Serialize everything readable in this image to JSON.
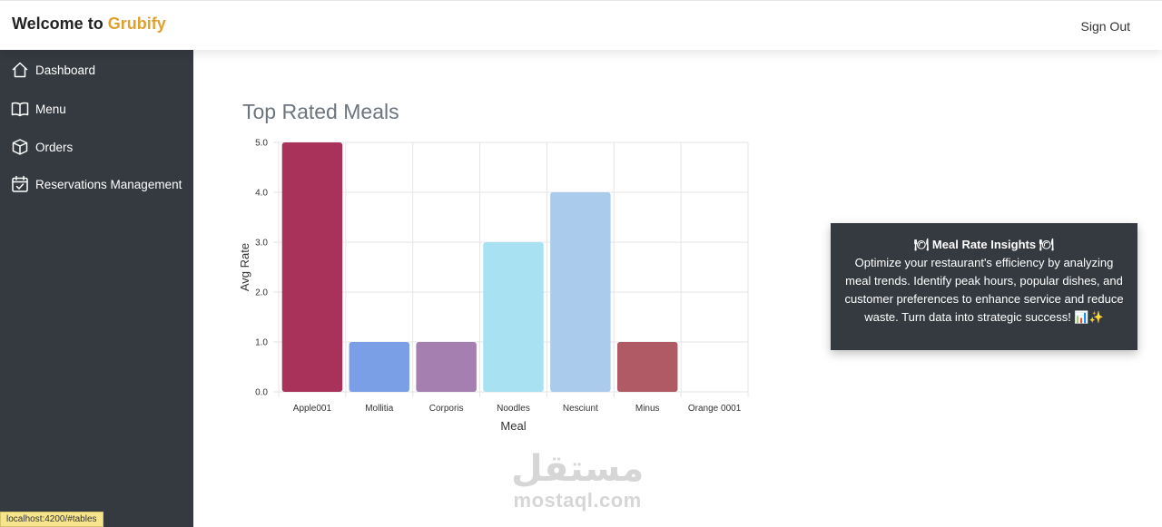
{
  "header": {
    "brand_prefix": "Welcome to",
    "brand_name": "Grubify",
    "signout_label": "Sign Out"
  },
  "sidebar": {
    "items": [
      {
        "label": "Dashboard",
        "icon": "house-icon"
      },
      {
        "label": "Menu",
        "icon": "book-icon"
      },
      {
        "label": "Orders",
        "icon": "box-icon"
      },
      {
        "label": "Reservations Management",
        "icon": "calendar-check-icon"
      }
    ]
  },
  "main": {
    "title": "Top Rated Meals"
  },
  "chart_data": {
    "type": "bar",
    "categories": [
      "Apple001",
      "Mollitia",
      "Corporis",
      "Noodles",
      "Nesciunt",
      "Minus",
      "Orange 0001"
    ],
    "values": [
      5,
      1,
      1,
      3,
      4,
      1,
      0
    ],
    "colors": [
      "#a8325a",
      "#7b9fe6",
      "#a47fb0",
      "#a8e1f2",
      "#aacbeb",
      "#b05a66",
      "#cccccc"
    ],
    "xlabel": "Meal",
    "ylabel": "Avg Rate",
    "ylim": [
      0,
      5
    ],
    "yticks": [
      "0.0",
      "1.0",
      "2.0",
      "3.0",
      "4.0",
      "5.0"
    ],
    "grid": true
  },
  "insights": {
    "title": "🍽 Meal Rate Insights 🍽",
    "body": "Optimize your restaurant's efficiency by analyzing meal trends. Identify peak hours, popular dishes, and customer preferences to enhance service and reduce waste. Turn data into strategic success! 📊✨"
  },
  "watermark": {
    "arabic": "مستقل",
    "latin": "mostaql.com"
  },
  "statusbar": {
    "url": "localhost:4200/#tables"
  }
}
